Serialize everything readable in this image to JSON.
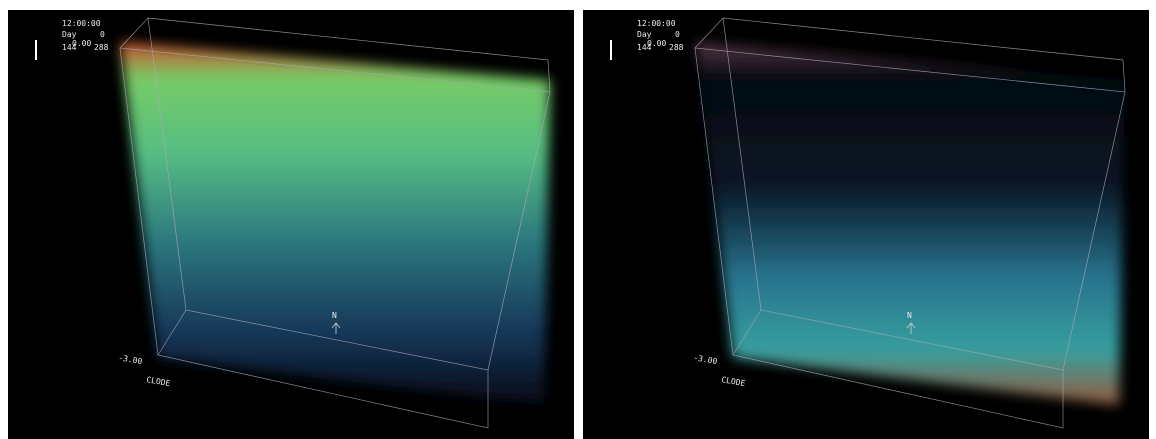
{
  "panels": [
    {
      "time": "12:00:00",
      "day_label": "Day",
      "day": "0",
      "scale_min": "144",
      "scale_mid": "0.00",
      "scale_max": "288",
      "depth_label": "-3.00",
      "axis_label": "CLODE",
      "north": "N"
    },
    {
      "time": "12:00:00",
      "day_label": "Day",
      "day": "0",
      "scale_min": "144",
      "scale_mid": "0.00",
      "scale_max": "288",
      "depth_label": "-3.00",
      "axis_label": "CLODE",
      "north": "N"
    }
  ]
}
